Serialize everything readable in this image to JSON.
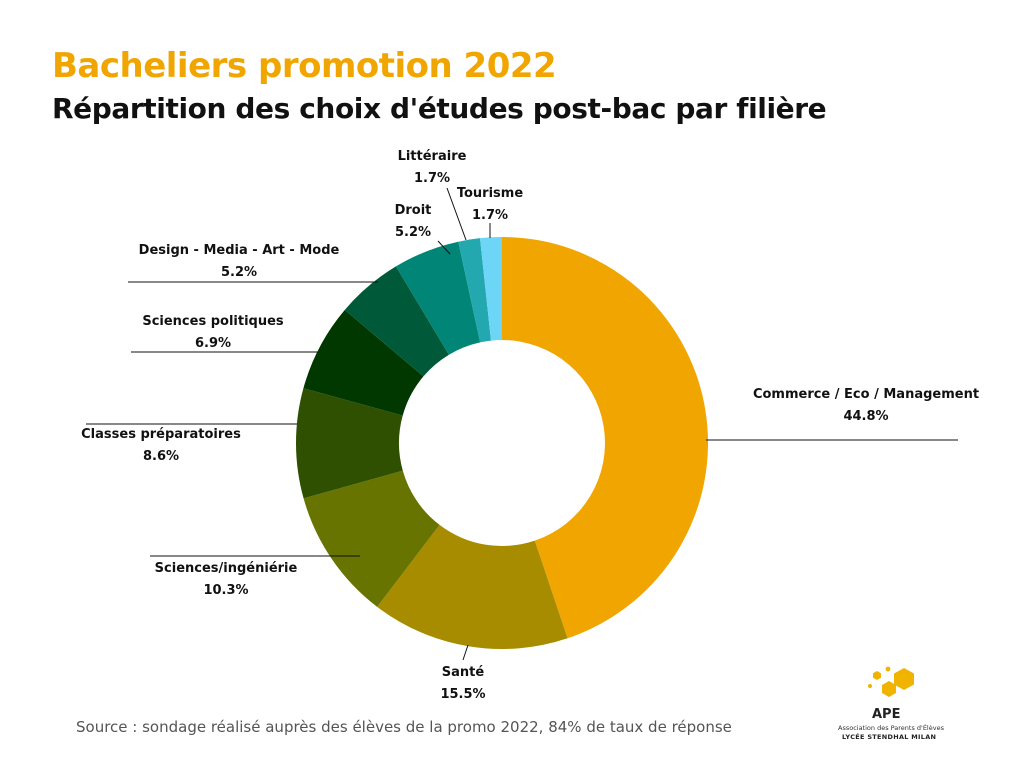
{
  "header": {
    "title": "Bacheliers promotion 2022",
    "subtitle": "Répartition des choix d'études post-bac par filière"
  },
  "chart_data": {
    "type": "donut",
    "title": "Bacheliers promotion 2022",
    "subtitle": "Répartition des choix d'études post-bac par filière",
    "unit": "%",
    "slices": [
      {
        "label": "Commerce / Eco / Management",
        "value": 44.8,
        "display": "44.8%",
        "color": "#f0a500",
        "key": "commerce"
      },
      {
        "label": "Santé",
        "value": 15.5,
        "display": "15.5%",
        "color": "#a88c00",
        "key": "sante"
      },
      {
        "label": "Sciences/ingéniérie",
        "value": 10.3,
        "display": "10.3%",
        "color": "#687400",
        "key": "sciences-ingenierie"
      },
      {
        "label": "Classes préparatoires",
        "value": 8.6,
        "display": "8.6%",
        "color": "#2e5000",
        "key": "classes-preparatoires"
      },
      {
        "label": "Sciences politiques",
        "value": 6.9,
        "display": "6.9%",
        "color": "#013800",
        "key": "sciences-politiques"
      },
      {
        "label": "Design - Media - Art - Mode",
        "value": 5.2,
        "display": "5.2%",
        "color": "#005a3a",
        "key": "design-media-art-mode"
      },
      {
        "label": "Droit",
        "value": 5.2,
        "display": "5.2%",
        "color": "#008576",
        "key": "droit"
      },
      {
        "label": "Tourisme",
        "value": 1.7,
        "display": "1.7%",
        "color": "#24a8b0",
        "key": "tourisme"
      },
      {
        "label": "Littéraire",
        "value": 1.7,
        "display": "1.7%",
        "color": "#6dd6f7",
        "key": "litteraire"
      }
    ]
  },
  "footer": {
    "source": "Source : sondage réalisé auprès des élèves de la promo 2022, 84% de taux de réponse"
  },
  "logo": {
    "abbr": "APE",
    "association": "Association des Parents d'Élèves",
    "school": "LYCÉE STENDHAL MILAN",
    "color": "#f0b400"
  }
}
